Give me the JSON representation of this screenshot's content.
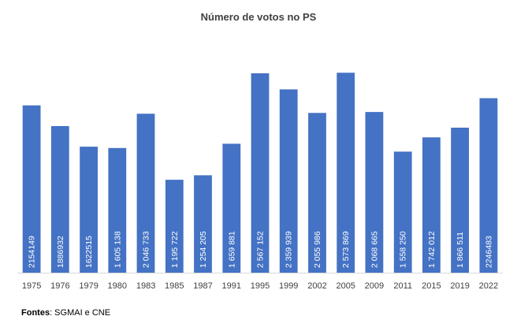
{
  "chart_data": {
    "type": "bar",
    "title": "Número de votos no PS",
    "xlabel": "",
    "ylabel": "",
    "ylim": [
      0,
      2800000
    ],
    "grid": false,
    "legend": "none",
    "color": "#4472C4",
    "categories": [
      "1975",
      "1976",
      "1979",
      "1980",
      "1983",
      "1985",
      "1987",
      "1991",
      "1995",
      "1999",
      "2002",
      "2005",
      "2009",
      "2011",
      "2015",
      "2019",
      "2022"
    ],
    "values": [
      2154149,
      1886932,
      1622515,
      1605138,
      2046733,
      1195722,
      1254205,
      1659881,
      2567152,
      2359939,
      2055986,
      2573869,
      2068665,
      1558250,
      1742012,
      1866511,
      2246483
    ],
    "data_labels": [
      "2154149",
      "1886932",
      "1622515",
      "1 605 138",
      "2 046 733",
      "1 195 722",
      "1 254 205",
      "1 659 881",
      "2 567 152",
      "2 359 939",
      "2 055 986",
      "2 573 869",
      "2 068 665",
      "1 558 250",
      "1 742 012",
      "1 866 511",
      "2246483"
    ]
  },
  "source": {
    "label": "Fontes",
    "text": ": SGMAI e CNE"
  }
}
